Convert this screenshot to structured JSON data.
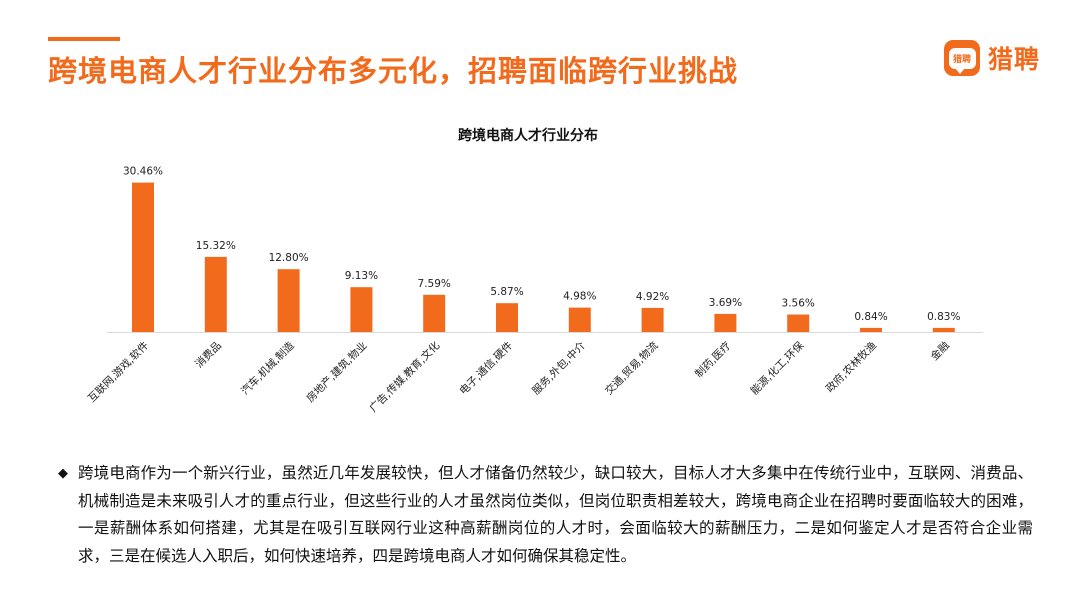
{
  "header": {
    "title": "跨境电商人才行业分布多元化，招聘面临跨行业挑战",
    "brand_badge": "猎聘",
    "brand_name": "猎聘",
    "accent_color": "#F26B1D"
  },
  "chart_data": {
    "type": "bar",
    "title": "跨境电商人才行业分布",
    "categories": [
      "互联网,游戏,软件",
      "消费品",
      "汽车,机械,制造",
      "房地产,建筑,物业",
      "广告,传媒,教育,文化",
      "电子,通信,硬件",
      "服务,外包,中介",
      "交通,贸易,物流",
      "制药,医疗",
      "能源,化工,环保",
      "政府,农林牧渔",
      "金融"
    ],
    "values": [
      30.46,
      15.32,
      12.8,
      9.13,
      7.59,
      5.87,
      4.98,
      4.92,
      3.69,
      3.56,
      0.84,
      0.83
    ],
    "labels": [
      "30.46%",
      "15.32%",
      "12.80%",
      "9.13%",
      "7.59%",
      "5.87%",
      "4.98%",
      "4.92%",
      "3.69%",
      "3.56%",
      "0.84%",
      "0.83%"
    ],
    "unit": "%",
    "bar_color": "#F26B1D",
    "ylim": [
      0,
      31
    ],
    "grid": false,
    "legend": "none"
  },
  "notes": {
    "bullet": "◆",
    "text": "跨境电商作为一个新兴行业，虽然近几年发展较快，但人才储备仍然较少，缺口较大，目标人才大多集中在传统行业中，互联网、消费品、机械制造是未来吸引人才的重点行业，但这些行业的人才虽然岗位类似，但岗位职责相差较大，跨境电商企业在招聘时要面临较大的困难，一是薪酬体系如何搭建，尤其是在吸引互联网行业这种高薪酬岗位的人才时，会面临较大的薪酬压力，二是如何鉴定人才是否符合企业需求，三是在候选人入职后，如何快速培养，四是跨境电商人才如何确保其稳定性。"
  }
}
